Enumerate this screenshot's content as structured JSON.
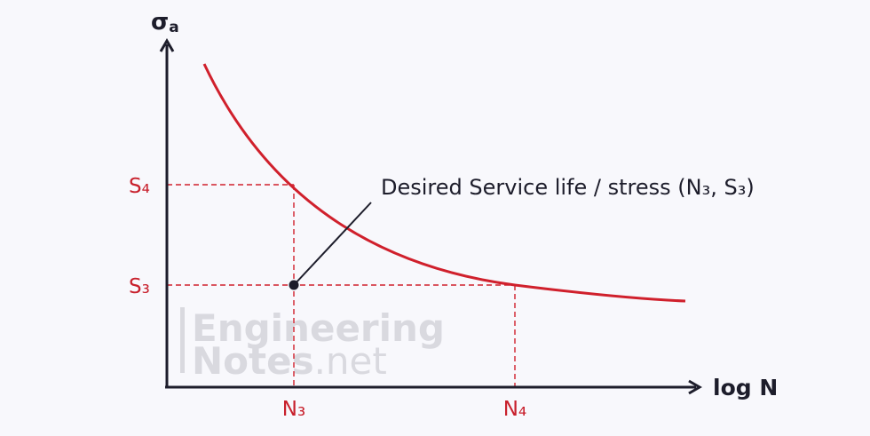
{
  "axes": {
    "y_label": "σ",
    "y_label_subscript": "a",
    "x_label": "log N"
  },
  "ticks": {
    "s4": "S₄",
    "s3": "S₃",
    "n3": "N₃",
    "n4": "N₄"
  },
  "annotation": {
    "text": "Desired Service life / stress (N₃, S₃)"
  },
  "watermark": {
    "line1": "Engineering",
    "line2_bold": "Notes",
    "line2_light": ".net"
  },
  "colors": {
    "curve": "#d0202c",
    "axis": "#1d1d2b",
    "guide": "#d0202c",
    "tick_text": "#c8202c",
    "watermark": "#d9d9df"
  }
}
